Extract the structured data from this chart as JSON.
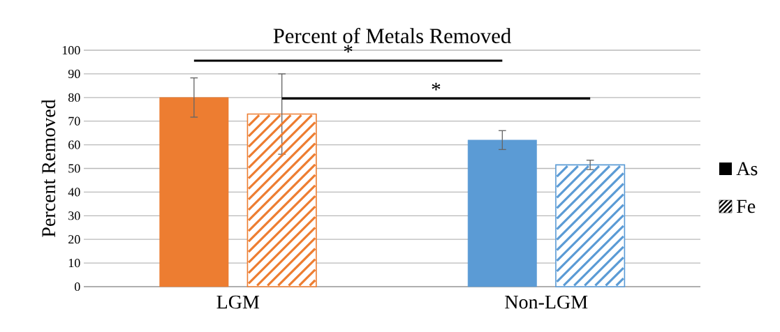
{
  "chart_data": {
    "type": "bar",
    "title": "Percent of Metals Removed",
    "ylabel": "Percent Removed",
    "categories": [
      "LGM",
      "Non-LGM"
    ],
    "series": [
      {
        "name": "As",
        "colors": [
          "#ed7d31",
          "#5b9bd5"
        ],
        "values": [
          80,
          62
        ],
        "errors": [
          8.3,
          4
        ]
      },
      {
        "name": "Fe",
        "colors": [
          "#ed7d31",
          "#5b9bd5"
        ],
        "values": [
          73,
          51.5
        ],
        "errors": [
          17,
          2
        ]
      }
    ],
    "ylim": [
      0,
      100
    ],
    "yticks": [
      0,
      10,
      20,
      30,
      40,
      50,
      60,
      70,
      80,
      90,
      100
    ],
    "grid": "y",
    "legend": "right",
    "annotations": [
      "*",
      "*"
    ]
  }
}
